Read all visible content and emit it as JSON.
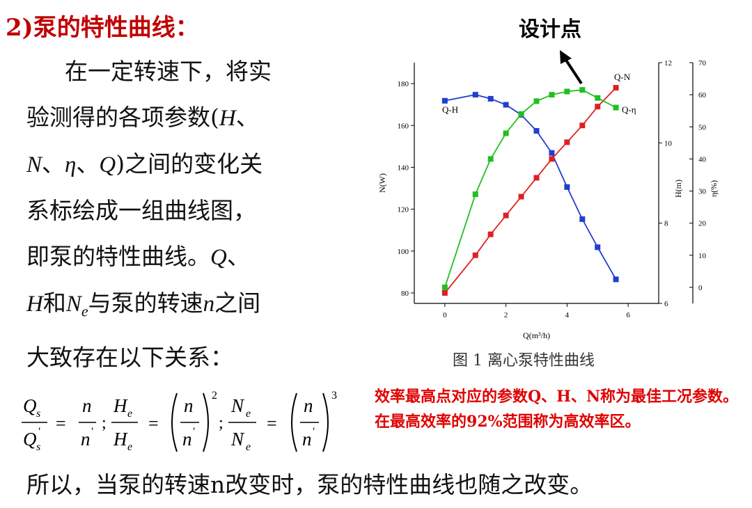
{
  "title": "2)泵的特性曲线：",
  "paragraph": {
    "l1": "在一定转速下，将实",
    "l2a": "验测得的各项参数(",
    "l2b": "H",
    "l2c": "、",
    "l3a": "N",
    "l3b": "、",
    "l3c": "η",
    "l3d": "、",
    "l3e": "Q",
    "l3f": ")之间的变化关",
    "l4": "系标绘成一组曲线图，",
    "l5a": "即泵的特性曲线。",
    "l5b": "Q",
    "l5c": "、",
    "l6a": "H",
    "l6b": "和",
    "l6c": "N",
    "l6d": "e",
    "l6e": "与泵的转速",
    "l6f": "n",
    "l6g": "之间",
    "l7": "大致存在以下关系："
  },
  "chart_annotation": "设计点",
  "figure_caption": "图 1   离心泵特性曲线",
  "note": "效率最高点对应的参数Q、H、N称为最佳工况参数。在最高效率的92%范围称为高效率区。",
  "bottom_text": "所以，当泵的转速n改变时，泵的特性曲线也随之改变。",
  "formula": {
    "qs": "Q",
    "qs_sub": "s",
    "qs2": "Q",
    "qs2_sub": "s",
    "qs2_sup": "'",
    "n": "n",
    "n2": "n",
    "prime": "'",
    "he": "H",
    "he_sub": "e",
    "he2": "H",
    "he2_sub": "e",
    "ne": "N",
    "ne_sub": "e",
    "ne2": "N",
    "ne2_sub": "e",
    "eq": "=",
    "semi": ";",
    "exp2": "2",
    "exp3": "3"
  },
  "chart_data": {
    "type": "line",
    "xlabel": "Q(m³/h)",
    "ylabel_left": "N(W)",
    "ylabel_right1": "H(m)",
    "ylabel_right2": "η(%)",
    "xlim": [
      -1,
      7
    ],
    "ylim_left": [
      75,
      190
    ],
    "ylim_right1": [
      6,
      12
    ],
    "ylim_right2": [
      -5,
      70
    ],
    "x_ticks": [
      "0",
      "2",
      "4",
      "6"
    ],
    "y_ticks_left": [
      "80",
      "100",
      "120",
      "140",
      "160",
      "180"
    ],
    "y_ticks_right1": [
      "6",
      "8",
      "10",
      "12"
    ],
    "y_ticks_right2": [
      "0",
      "10",
      "20",
      "30",
      "40",
      "50",
      "60",
      "70"
    ],
    "series": [
      {
        "name": "Q-H",
        "axis": "H",
        "color": "#1f3fd0",
        "x": [
          0,
          1,
          1.5,
          2,
          2.5,
          3,
          3.5,
          4,
          4.5,
          5,
          5.6
        ],
        "y": [
          11.05,
          11.2,
          11.1,
          10.95,
          10.7,
          10.3,
          9.75,
          8.9,
          8.1,
          7.4,
          6.6
        ]
      },
      {
        "name": "Q-N",
        "axis": "N",
        "color": "#e02020",
        "x": [
          0,
          1,
          1.5,
          2,
          2.5,
          3,
          3.5,
          4,
          4.5,
          5,
          5.6
        ],
        "y": [
          80,
          98,
          108,
          117,
          126,
          135,
          144,
          152,
          160,
          169,
          178
        ]
      },
      {
        "name": "Q-η",
        "axis": "eta",
        "color": "#20c020",
        "x": [
          0,
          1,
          1.5,
          2,
          2.5,
          3,
          3.5,
          4,
          4.5,
          5,
          5.6
        ],
        "y": [
          0,
          29,
          40,
          48,
          54,
          58,
          60,
          61,
          61.5,
          59,
          56
        ]
      }
    ]
  }
}
